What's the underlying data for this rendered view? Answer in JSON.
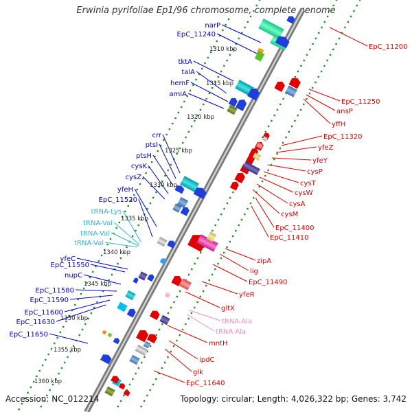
{
  "title": "Erwinia pyrifoliae Ep1/96 chromosome, complete genome",
  "footer": {
    "accession": "Accession: NC_012214",
    "topology": "Topology: circular; Length: 4,026,322 bp; Genes: 3,742"
  },
  "colors": {
    "forward_label": "#0000cc",
    "reverse_label": "#e00000",
    "trna_forward": "#33b5d8",
    "trna_reverse": "#f28fb8",
    "backbone": "#8f8f8f",
    "ticks": "#228b22"
  },
  "scale_labels": [
    "1310 kbp",
    "1315 kbp",
    "1320 kbp",
    "1325 kbp",
    "1330 kbp",
    "1335 kbp",
    "1340 kbp",
    "1345 kbp",
    "1350 kbp",
    "1355 kbp",
    "1360 kbp"
  ],
  "forward_genes": [
    "narP",
    "EpC_11240",
    "tktA",
    "talA",
    "hemF",
    "amiA",
    "crr",
    "ptsI",
    "ptsH",
    "cysK",
    "cysZ",
    "yfeH",
    "EpC_11520",
    "yfeC",
    "EpC_11550",
    "nupC",
    "EpC_11580",
    "EpC_11590",
    "EpC_11600",
    "EpC_11630",
    "EpC_11650"
  ],
  "forward_trna": [
    "tRNA-Lys",
    "tRNA-Val",
    "tRNA-Val",
    "tRNA-Val"
  ],
  "reverse_genes": [
    "EpC_11200",
    "EpC_11250",
    "ansP",
    "yffH",
    "EpC_11320",
    "yfeZ",
    "yfeY",
    "cysP",
    "cysT",
    "cysW",
    "cysA",
    "cysM",
    "EpC_11400",
    "EpC_11410",
    "zipA",
    "lig",
    "EpC_11490",
    "yfeR",
    "gltX",
    "mntH",
    "ipdC",
    "glk",
    "EpC_11640"
  ],
  "reverse_trna": [
    "tRNA-Ala",
    "tRNA-Ala"
  ]
}
